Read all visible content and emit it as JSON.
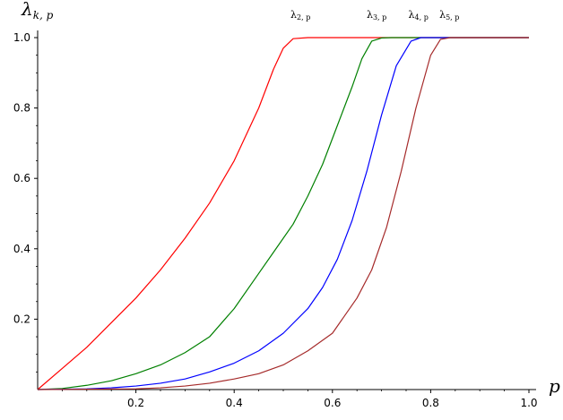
{
  "chart_data": {
    "type": "line",
    "xlabel": "p",
    "ylabel": {
      "base": "λ",
      "sub": "k, p"
    },
    "xlim": [
      0,
      1.0
    ],
    "ylim": [
      0,
      1.0
    ],
    "grid": false,
    "legend": "none",
    "xticks": [
      {
        "value": 0.2,
        "label": "0.2"
      },
      {
        "value": 0.4,
        "label": "0.4"
      },
      {
        "value": 0.6,
        "label": "0.6"
      },
      {
        "value": 0.8,
        "label": "0.8"
      },
      {
        "value": 1.0,
        "label": "1.0"
      }
    ],
    "yticks": [
      {
        "value": 0.2,
        "label": "0.2"
      },
      {
        "value": 0.4,
        "label": "0.4"
      },
      {
        "value": 0.6,
        "label": "0.6"
      },
      {
        "value": 0.8,
        "label": "0.8"
      },
      {
        "value": 1.0,
        "label": "1.0"
      }
    ],
    "series": [
      {
        "label_base": "λ",
        "label_sub": "2, p",
        "label_at": [
          0.535,
          1.02
        ],
        "color": "#ff0000",
        "x": [
          0,
          0.05,
          0.1,
          0.15,
          0.2,
          0.25,
          0.3,
          0.35,
          0.4,
          0.45,
          0.48,
          0.5,
          0.52,
          0.55,
          1.0
        ],
        "y": [
          0,
          0.06,
          0.12,
          0.19,
          0.26,
          0.34,
          0.43,
          0.53,
          0.65,
          0.8,
          0.91,
          0.97,
          0.997,
          1.0,
          1.0
        ]
      },
      {
        "label_base": "λ",
        "label_sub": "3, p",
        "label_at": [
          0.69,
          1.02
        ],
        "color": "#008000",
        "x": [
          0,
          0.05,
          0.1,
          0.15,
          0.2,
          0.25,
          0.3,
          0.35,
          0.4,
          0.45,
          0.48,
          0.52,
          0.55,
          0.58,
          0.61,
          0.64,
          0.66,
          0.68,
          0.7,
          0.72,
          1.0
        ],
        "y": [
          0,
          0.003,
          0.012,
          0.025,
          0.045,
          0.07,
          0.105,
          0.15,
          0.23,
          0.33,
          0.39,
          0.47,
          0.55,
          0.64,
          0.75,
          0.86,
          0.94,
          0.99,
          0.999,
          1.0,
          1.0
        ]
      },
      {
        "label_base": "λ",
        "label_sub": "4, p",
        "label_at": [
          0.775,
          1.02
        ],
        "color": "#0000ff",
        "x": [
          0,
          0.1,
          0.15,
          0.2,
          0.25,
          0.3,
          0.35,
          0.4,
          0.45,
          0.5,
          0.55,
          0.58,
          0.61,
          0.64,
          0.67,
          0.7,
          0.73,
          0.76,
          0.78,
          1.0
        ],
        "y": [
          0,
          0.002,
          0.005,
          0.01,
          0.018,
          0.03,
          0.05,
          0.075,
          0.11,
          0.16,
          0.23,
          0.29,
          0.37,
          0.48,
          0.62,
          0.78,
          0.92,
          0.99,
          1.0,
          1.0
        ]
      },
      {
        "label_base": "λ",
        "label_sub": "5, p",
        "label_at": [
          0.838,
          1.02
        ],
        "color": "#a52a2a",
        "x": [
          0,
          0.2,
          0.25,
          0.3,
          0.35,
          0.4,
          0.45,
          0.5,
          0.55,
          0.6,
          0.65,
          0.68,
          0.71,
          0.74,
          0.77,
          0.8,
          0.82,
          0.84,
          1.0
        ],
        "y": [
          0,
          0.002,
          0.005,
          0.01,
          0.018,
          0.03,
          0.045,
          0.07,
          0.11,
          0.16,
          0.26,
          0.34,
          0.46,
          0.62,
          0.8,
          0.95,
          0.995,
          1.0,
          1.0
        ]
      }
    ]
  }
}
